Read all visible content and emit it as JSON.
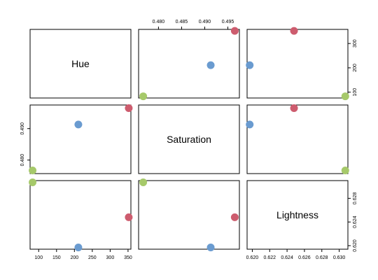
{
  "chart_data": {
    "type": "scatter",
    "title": "",
    "variables": [
      "Hue",
      "Saturation",
      "Lightness"
    ],
    "points": [
      {
        "Hue": 352,
        "Saturation": 0.4965,
        "Lightness": 0.6248,
        "color": "#cd5c6e"
      },
      {
        "Hue": 211,
        "Saturation": 0.4913,
        "Lightness": 0.6197,
        "color": "#6a9bd0"
      },
      {
        "Hue": 83,
        "Saturation": 0.4767,
        "Lightness": 0.6307,
        "color": "#a6c96a"
      }
    ],
    "axes": {
      "Hue": {
        "lim": [
          76,
          358
        ],
        "ticks": [
          100,
          150,
          200,
          250,
          300,
          350
        ],
        "tick_labels": [
          "100",
          "150",
          "200",
          "250",
          "300",
          "350"
        ],
        "right_ticks": [
          100,
          200,
          300
        ],
        "right_tick_labels": [
          "100",
          "200",
          "300"
        ]
      },
      "Saturation": {
        "lim": [
          0.4757,
          0.4975
        ],
        "ticks": [
          0.48,
          0.485,
          0.49,
          0.495
        ],
        "tick_labels": [
          "0.480",
          "0.485",
          "0.490",
          "0.495"
        ],
        "left_ticks": [
          0.48,
          0.49
        ],
        "left_tick_labels": [
          "0.480",
          "0.490"
        ]
      },
      "Lightness": {
        "lim": [
          0.6194,
          0.631
        ],
        "ticks": [
          0.62,
          0.622,
          0.624,
          0.626,
          0.628,
          0.63
        ],
        "tick_labels": [
          "0.620",
          "0.622",
          "0.624",
          "0.626",
          "0.628",
          "0.630"
        ],
        "right_ticks": [
          0.62,
          0.624,
          0.628
        ],
        "right_tick_labels": [
          "0.620",
          "0.624",
          "0.628"
        ]
      }
    },
    "grid": false
  }
}
